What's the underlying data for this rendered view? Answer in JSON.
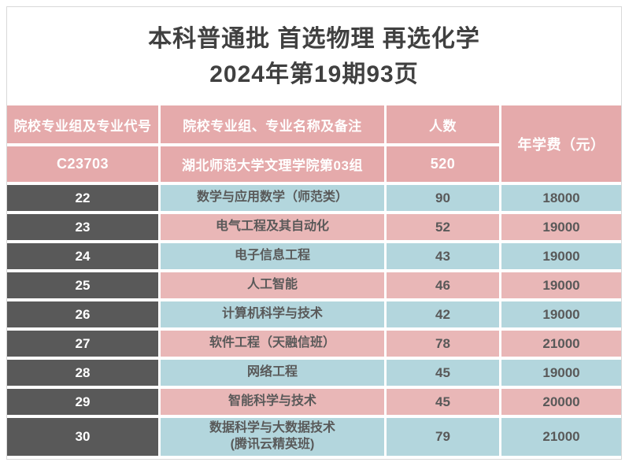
{
  "title": {
    "line1": "本科普通批  首选物理  再选化学",
    "line2": "2024年第19期93页"
  },
  "table": {
    "headers": {
      "col_code": "院校专业组及专业代号",
      "col_major": "院校专业组、专业名称及备注",
      "col_count": "人数",
      "col_fee": "年学费（元）"
    },
    "group": {
      "code": "C23703",
      "name": "湖北师范大学文理学院第03组",
      "count": "520"
    },
    "rows": [
      {
        "code": "22",
        "major": "数学与应用数学（师范类）",
        "count": "90",
        "fee": "18000"
      },
      {
        "code": "23",
        "major": "电气工程及其自动化",
        "count": "52",
        "fee": "19000"
      },
      {
        "code": "24",
        "major": "电子信息工程",
        "count": "43",
        "fee": "19000"
      },
      {
        "code": "25",
        "major": "人工智能",
        "count": "46",
        "fee": "19000"
      },
      {
        "code": "26",
        "major": "计算机科学与技术",
        "count": "42",
        "fee": "19000"
      },
      {
        "code": "27",
        "major": "软件工程（天融信班）",
        "count": "78",
        "fee": "21000"
      },
      {
        "code": "28",
        "major": "网络工程",
        "count": "45",
        "fee": "19000"
      },
      {
        "code": "29",
        "major": "智能科学与技术",
        "count": "45",
        "fee": "20000"
      },
      {
        "code": "30",
        "major": "数据科学与大数据技术\n(腾讯云精英班)",
        "count": "79",
        "fee": "21000"
      }
    ]
  },
  "palette": {
    "header_pink": "#e5aaab",
    "row_pink": "#e9b7b7",
    "row_blue": "#b3d6dd",
    "code_dark_gray": "#595959",
    "data_text": "#595959",
    "title_text": "#404040",
    "outer_border": "#d9d9d9",
    "cell_gap_white": "#ffffff"
  }
}
